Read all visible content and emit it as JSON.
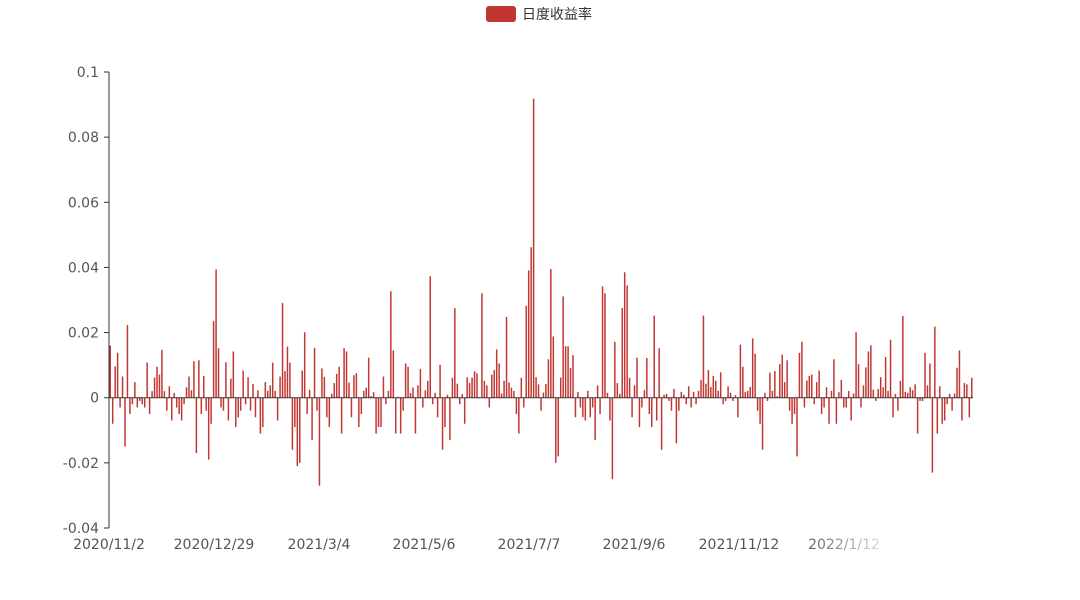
{
  "chart_data": {
    "type": "bar",
    "legend": {
      "label": "日度收益率",
      "color": "#c23531",
      "position": "top-center"
    },
    "yaxis": {
      "min": -0.04,
      "max": 0.1,
      "ticks": [
        "-0.04",
        "-0.02",
        "0",
        "0.02",
        "0.04",
        "0.06",
        "0.08",
        "0.1"
      ]
    },
    "xaxis": {
      "tick_labels": [
        "2020/11/2",
        "2020/12/29",
        "2021/3/4",
        "2021/5/6",
        "2021/7/7",
        "2021/9/6",
        "2021/11/12",
        "2022/1/12"
      ]
    },
    "series": [
      {
        "color": "#c23531",
        "values": [
          0.016,
          -0.008,
          0.0096,
          0.0138,
          -0.003,
          0.0065,
          -0.015,
          0.0223,
          -0.005,
          -0.002,
          0.0048,
          -0.003,
          -0.001,
          -0.002,
          -0.003,
          0.0108,
          -0.005,
          0.002,
          0.0062,
          0.0095,
          0.0071,
          0.0147,
          0.002,
          -0.004,
          0.0035,
          -0.007,
          0.0015,
          -0.003,
          -0.005,
          -0.007,
          -0.002,
          0.0032,
          0.0065,
          0.0023,
          0.0112,
          -0.017,
          0.0115,
          -0.005,
          0.0067,
          -0.004,
          -0.019,
          -0.008,
          0.0235,
          0.0394,
          0.0152,
          -0.003,
          -0.004,
          0.0109,
          -0.007,
          0.0059,
          0.0142,
          -0.009,
          -0.006,
          -0.004,
          0.0083,
          -0.002,
          0.0063,
          -0.004,
          0.0042,
          -0.006,
          0.0023,
          -0.011,
          -0.009,
          0.0048,
          0.0021,
          0.0038,
          0.0108,
          0.0021,
          -0.007,
          0.0065,
          0.0291,
          0.0082,
          0.0157,
          0.0108,
          -0.016,
          -0.009,
          -0.021,
          -0.02,
          0.0083,
          0.0201,
          -0.005,
          0.0024,
          -0.013,
          0.0153,
          -0.004,
          -0.027,
          0.009,
          0.0064,
          -0.006,
          -0.009,
          0.0012,
          0.0045,
          0.0073,
          0.0095,
          -0.011,
          0.0152,
          0.0142,
          0.0046,
          -0.006,
          0.0069,
          0.0075,
          -0.009,
          -0.005,
          0.0021,
          0.0031,
          0.0123,
          0.0005,
          0.0017,
          -0.011,
          -0.009,
          -0.009,
          0.0065,
          -0.002,
          0.0021,
          0.0327,
          0.0145,
          -0.011,
          0.0003,
          -0.011,
          -0.004,
          0.0105,
          0.0095,
          0.0015,
          0.0031,
          -0.011,
          0.0038,
          0.0088,
          -0.003,
          0.0023,
          0.0052,
          0.0373,
          -0.002,
          0.0015,
          -0.006,
          0.0101,
          -0.016,
          -0.009,
          0.0009,
          -0.013,
          0.0061,
          0.0275,
          0.0043,
          -0.002,
          0.0011,
          -0.008,
          0.0063,
          0.0045,
          0.0062,
          0.0081,
          0.0075,
          0.0002,
          0.0321,
          0.0052,
          0.0038,
          -0.003,
          0.0071,
          0.0085,
          0.0148,
          0.0105,
          0.0013,
          0.0052,
          0.0248,
          0.0047,
          0.0031,
          0.0021,
          -0.005,
          -0.011,
          0.0061,
          -0.003,
          0.0282,
          0.0391,
          0.0462,
          0.0918,
          0.0063,
          0.0041,
          -0.004,
          0.0016,
          0.0042,
          0.0118,
          0.0395,
          0.0188,
          -0.02,
          -0.018,
          0.0062,
          0.0311,
          0.0158,
          0.0158,
          0.0091,
          0.0131,
          -0.006,
          0.0018,
          -0.003,
          -0.006,
          -0.007,
          0.0021,
          -0.006,
          -0.003,
          -0.013,
          0.0038,
          -0.005,
          0.0342,
          0.0321,
          0.0015,
          -0.007,
          -0.025,
          0.0172,
          0.0045,
          0.0012,
          0.0275,
          0.0385,
          0.0345,
          0.0061,
          -0.006,
          0.0038,
          0.0123,
          -0.009,
          -0.003,
          0.0023,
          0.0122,
          -0.005,
          -0.009,
          0.0252,
          -0.007,
          0.0152,
          -0.016,
          0.0009,
          0.0012,
          -0.001,
          -0.004,
          0.0027,
          -0.014,
          -0.004,
          0.0018,
          0.0009,
          -0.002,
          0.0035,
          -0.003,
          0.0018,
          -0.002,
          0.0021,
          0.0055,
          0.0252,
          0.0043,
          0.0085,
          0.0033,
          0.0067,
          0.0052,
          0.0021,
          0.0078,
          -0.002,
          -0.001,
          0.0035,
          0.0015,
          -0.001,
          0.0008,
          -0.006,
          0.0163,
          0.0095,
          0.0018,
          0.0021,
          0.0033,
          0.0182,
          0.0135,
          -0.004,
          -0.008,
          -0.016,
          0.0015,
          -0.001,
          0.0077,
          0.0021,
          0.0082,
          0.0005,
          0.0103,
          0.0132,
          0.0048,
          0.0115,
          -0.004,
          -0.008,
          -0.005,
          -0.018,
          0.0138,
          0.0172,
          -0.003,
          0.0053,
          0.0067,
          0.0071,
          -0.002,
          0.0048,
          0.0083,
          -0.005,
          -0.003,
          0.0032,
          -0.008,
          0.0021,
          0.0118,
          -0.008,
          0.0017,
          0.0055,
          -0.003,
          -0.003,
          0.0021,
          -0.007,
          0.0013,
          0.0201,
          0.0103,
          -0.003,
          0.0038,
          0.0093,
          0.0142,
          0.0161,
          0.0025,
          -0.001,
          0.0027,
          0.0063,
          0.0032,
          0.0125,
          0.0021,
          0.0178,
          -0.006,
          0.0012,
          -0.004,
          0.0052,
          0.0251,
          0.0018,
          0.0015,
          0.0032,
          0.0023,
          0.0041,
          -0.011,
          -0.001,
          -0.001,
          0.0138,
          0.0038,
          0.0105,
          -0.023,
          0.0218,
          -0.011,
          0.0035,
          -0.008,
          -0.007,
          -0.002,
          0.0012,
          -0.004,
          0.0013,
          0.0092,
          0.0145,
          -0.007,
          0.0045,
          0.0041,
          -0.006,
          0.0061
        ]
      }
    ]
  }
}
